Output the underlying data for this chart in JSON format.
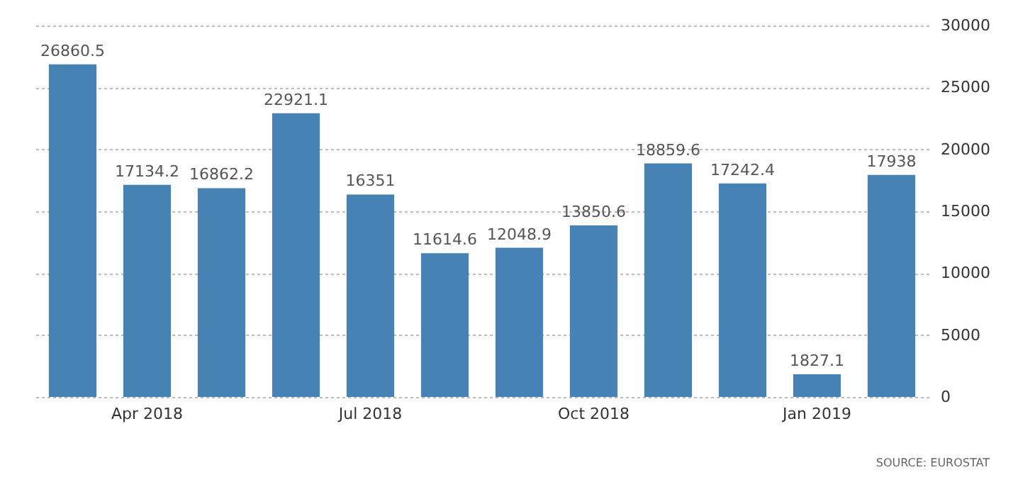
{
  "chart_data": {
    "type": "bar",
    "categories": [
      null,
      "Apr 2018",
      null,
      null,
      "Jul 2018",
      null,
      null,
      "Oct 2018",
      null,
      null,
      "Jan 2019",
      null
    ],
    "values": [
      26860.5,
      17134.2,
      16862.2,
      22921.1,
      16351,
      11614.6,
      12048.9,
      13850.6,
      18859.6,
      17242.4,
      1827.1,
      17938
    ],
    "color": "#4682b4",
    "ylim": [
      0,
      30000
    ],
    "yticks": [
      0,
      5000,
      10000,
      15000,
      20000,
      25000,
      30000
    ],
    "grid": "y",
    "data_labels": true,
    "annotations": [
      "SOURCE: EUROSTAT"
    ]
  }
}
